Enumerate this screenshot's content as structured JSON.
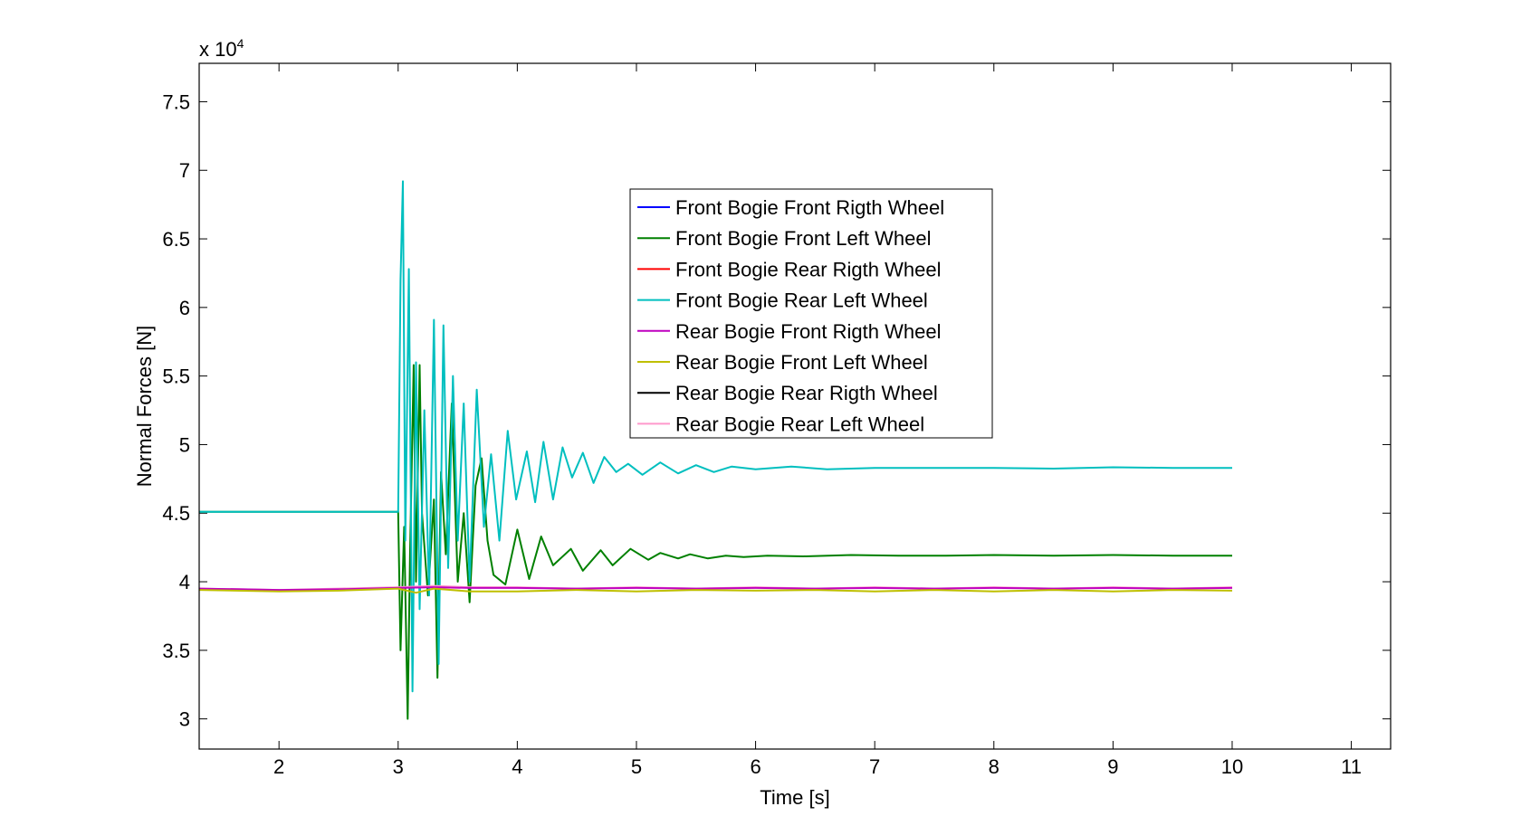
{
  "chart_data": {
    "type": "line",
    "xlabel": "Time [s]",
    "ylabel": "Normal Forces [N]",
    "y_multiplier_label": {
      "base": "x 10",
      "exponent": "4"
    },
    "xlim": [
      1.33,
      11.33
    ],
    "ylim": [
      2.78,
      7.78
    ],
    "xticks": [
      {
        "value": 2,
        "label": "2"
      },
      {
        "value": 3,
        "label": "3"
      },
      {
        "value": 4,
        "label": "4"
      },
      {
        "value": 5,
        "label": "5"
      },
      {
        "value": 6,
        "label": "6"
      },
      {
        "value": 7,
        "label": "7"
      },
      {
        "value": 8,
        "label": "8"
      },
      {
        "value": 9,
        "label": "9"
      },
      {
        "value": 10,
        "label": "10"
      },
      {
        "value": 11,
        "label": "11"
      }
    ],
    "yticks": [
      {
        "value": 3,
        "label": "3"
      },
      {
        "value": 3.5,
        "label": "3.5"
      },
      {
        "value": 4,
        "label": "4"
      },
      {
        "value": 4.5,
        "label": "4.5"
      },
      {
        "value": 5,
        "label": "5"
      },
      {
        "value": 5.5,
        "label": "5.5"
      },
      {
        "value": 6,
        "label": "6"
      },
      {
        "value": 6.5,
        "label": "6.5"
      },
      {
        "value": 7,
        "label": "7"
      },
      {
        "value": 7.5,
        "label": "7.5"
      }
    ],
    "legend_position": "upper-center",
    "series": [
      {
        "name": "Front Bogie Front Rigth Wheel",
        "color": "#0000ff"
      },
      {
        "name": "Front Bogie Front Left Wheel",
        "color": "#008000"
      },
      {
        "name": "Front Bogie Rear Rigth Wheel",
        "color": "#ff0000"
      },
      {
        "name": "Front Bogie Rear Left Wheel",
        "color": "#00bfbf"
      },
      {
        "name": "Rear Bogie Front Rigth Wheel",
        "color": "#bf00bf"
      },
      {
        "name": "Rear Bogie Front Left Wheel",
        "color": "#bfbf00"
      },
      {
        "name": "Rear Bogie Rear Rigth Wheel",
        "color": "#000000"
      },
      {
        "name": "Rear Bogie Rear Left Wheel",
        "color": "#ff99cc"
      }
    ],
    "lines": [
      {
        "series": 1,
        "x": [
          1.33,
          3.0,
          3.02,
          3.05,
          3.08,
          3.1,
          3.13,
          3.15,
          3.18,
          3.2,
          3.25,
          3.3,
          3.33,
          3.36,
          3.4,
          3.45,
          3.5,
          3.55,
          3.6,
          3.65,
          3.7,
          3.75,
          3.8,
          3.9,
          4.0,
          4.1,
          4.2,
          4.3,
          4.45,
          4.55,
          4.7,
          4.8,
          4.95,
          5.1,
          5.2,
          5.35,
          5.45,
          5.6,
          5.75,
          5.9,
          6.1,
          6.4,
          6.8,
          7.2,
          7.6,
          8.0,
          8.5,
          9.0,
          9.5,
          10.0
        ],
        "y": [
          4.51,
          4.51,
          3.5,
          4.4,
          3.0,
          4.2,
          5.58,
          4.0,
          5.58,
          4.5,
          3.9,
          4.6,
          3.3,
          4.8,
          4.2,
          5.3,
          4.0,
          4.5,
          3.85,
          4.7,
          4.9,
          4.3,
          4.05,
          3.98,
          4.38,
          4.02,
          4.33,
          4.12,
          4.24,
          4.08,
          4.23,
          4.12,
          4.24,
          4.16,
          4.21,
          4.17,
          4.2,
          4.17,
          4.19,
          4.18,
          4.19,
          4.185,
          4.195,
          4.19,
          4.19,
          4.195,
          4.19,
          4.195,
          4.19,
          4.19
        ]
      },
      {
        "series": 3,
        "x": [
          1.33,
          3.0,
          3.02,
          3.04,
          3.06,
          3.09,
          3.12,
          3.15,
          3.18,
          3.22,
          3.26,
          3.3,
          3.34,
          3.38,
          3.42,
          3.46,
          3.5,
          3.55,
          3.6,
          3.66,
          3.72,
          3.78,
          3.85,
          3.92,
          3.99,
          4.08,
          4.15,
          4.22,
          4.3,
          4.38,
          4.46,
          4.55,
          4.64,
          4.73,
          4.83,
          4.93,
          5.05,
          5.2,
          5.35,
          5.5,
          5.65,
          5.8,
          6.0,
          6.3,
          6.6,
          7.0,
          7.5,
          8.0,
          8.5,
          9.0,
          9.5,
          10.0
        ],
        "y": [
          4.51,
          4.51,
          6.2,
          6.92,
          4.3,
          6.28,
          3.2,
          5.6,
          3.8,
          5.25,
          3.9,
          5.91,
          3.4,
          5.87,
          4.1,
          5.5,
          4.3,
          5.3,
          4.0,
          5.4,
          4.4,
          4.93,
          4.3,
          5.1,
          4.6,
          4.95,
          4.58,
          5.02,
          4.6,
          4.98,
          4.76,
          4.94,
          4.72,
          4.91,
          4.8,
          4.86,
          4.78,
          4.87,
          4.79,
          4.85,
          4.8,
          4.84,
          4.82,
          4.84,
          4.82,
          4.83,
          4.83,
          4.83,
          4.825,
          4.835,
          4.83,
          4.83
        ]
      },
      {
        "series": 7,
        "x": [
          1.33,
          2.0,
          2.5,
          3.0,
          3.3,
          3.6,
          4.0,
          4.5,
          5.0,
          5.5,
          6.0,
          6.5,
          7.0,
          7.5,
          8.0,
          8.5,
          9.0,
          9.5,
          10.0
        ],
        "y": [
          3.95,
          3.94,
          3.95,
          3.96,
          3.97,
          3.96,
          3.96,
          3.95,
          3.96,
          3.95,
          3.96,
          3.95,
          3.96,
          3.95,
          3.96,
          3.95,
          3.96,
          3.95,
          3.96
        ]
      },
      {
        "series": 4,
        "x": [
          1.33,
          2.0,
          2.5,
          3.0,
          3.3,
          3.6,
          4.0,
          4.5,
          5.0,
          5.5,
          6.0,
          6.5,
          7.0,
          7.5,
          8.0,
          8.5,
          9.0,
          9.5,
          10.0
        ],
        "y": [
          3.95,
          3.94,
          3.945,
          3.955,
          3.96,
          3.955,
          3.955,
          3.95,
          3.955,
          3.95,
          3.955,
          3.95,
          3.955,
          3.95,
          3.955,
          3.95,
          3.955,
          3.95,
          3.955
        ]
      },
      {
        "series": 5,
        "x": [
          1.33,
          2.0,
          2.5,
          3.0,
          3.15,
          3.3,
          3.6,
          4.0,
          4.5,
          5.0,
          5.5,
          6.0,
          6.5,
          7.0,
          7.5,
          8.0,
          8.5,
          9.0,
          9.5,
          10.0
        ],
        "y": [
          3.94,
          3.93,
          3.935,
          3.95,
          3.92,
          3.95,
          3.93,
          3.93,
          3.94,
          3.93,
          3.94,
          3.935,
          3.94,
          3.93,
          3.94,
          3.93,
          3.94,
          3.93,
          3.94,
          3.935
        ]
      }
    ]
  }
}
